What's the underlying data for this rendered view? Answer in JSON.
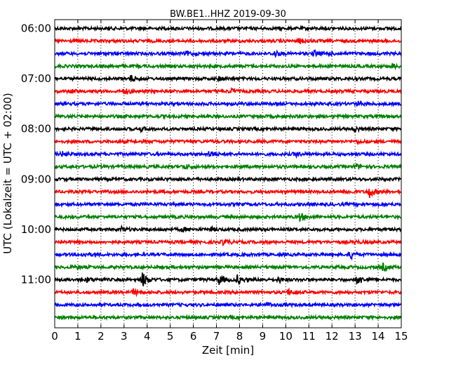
{
  "chart_data": {
    "type": "line",
    "title": "BW.BE1..HHZ 2019-09-30",
    "xlabel": "Zeit  [min]",
    "ylabel": "UTC (Lokalzeit = UTC + 02:00)",
    "xlim": [
      0,
      15
    ],
    "xticks": [
      0,
      1,
      2,
      3,
      4,
      5,
      6,
      7,
      8,
      9,
      10,
      11,
      12,
      13,
      14,
      15
    ],
    "y_tick_labels": [
      "06:00",
      "07:00",
      "08:00",
      "09:00",
      "10:00",
      "11:00"
    ],
    "trace_interval_min": 15,
    "trace_colors": [
      "#000000",
      "#ff0000",
      "#0000ff",
      "#008000"
    ],
    "traces": [
      {
        "start": "06:00",
        "color": "#000000",
        "events": []
      },
      {
        "start": "06:15",
        "color": "#ff0000",
        "events": [
          {
            "t": 10.6,
            "amp": 0.5
          }
        ]
      },
      {
        "start": "06:30",
        "color": "#0000ff",
        "events": [
          {
            "t": 5.7,
            "amp": 0.5
          },
          {
            "t": 9.5,
            "amp": 0.7
          },
          {
            "t": 11.2,
            "amp": 0.7
          },
          {
            "t": 11.8,
            "amp": 0.4
          }
        ]
      },
      {
        "start": "06:45",
        "color": "#008000",
        "events": [
          {
            "t": 14.6,
            "amp": 0.5
          }
        ]
      },
      {
        "start": "07:00",
        "color": "#000000",
        "events": [
          {
            "t": 3.3,
            "amp": 0.8
          },
          {
            "t": 7.1,
            "amp": 0.5
          }
        ]
      },
      {
        "start": "07:15",
        "color": "#ff0000",
        "events": [
          {
            "t": 0.7,
            "amp": 0.3
          },
          {
            "t": 3.0,
            "amp": 0.6
          },
          {
            "t": 7.6,
            "amp": 0.6
          }
        ]
      },
      {
        "start": "07:30",
        "color": "#0000ff",
        "events": [
          {
            "t": 13.1,
            "amp": 0.6
          }
        ]
      },
      {
        "start": "07:45",
        "color": "#008000",
        "events": []
      },
      {
        "start": "08:00",
        "color": "#000000",
        "events": [
          {
            "t": 3.7,
            "amp": 0.4
          },
          {
            "t": 13.0,
            "amp": 0.5
          }
        ]
      },
      {
        "start": "08:15",
        "color": "#ff0000",
        "events": [
          {
            "t": 13.1,
            "amp": 0.3
          }
        ]
      },
      {
        "start": "08:30",
        "color": "#0000ff",
        "events": [
          {
            "t": 0.3,
            "amp": 0.5
          },
          {
            "t": 6.7,
            "amp": 0.9
          },
          {
            "t": 10.4,
            "amp": 0.5
          }
        ]
      },
      {
        "start": "08:45",
        "color": "#008000",
        "events": [
          {
            "t": 5.6,
            "amp": 0.5
          },
          {
            "t": 13.0,
            "amp": 0.5
          }
        ]
      },
      {
        "start": "09:00",
        "color": "#000000",
        "events": []
      },
      {
        "start": "09:15",
        "color": "#ff0000",
        "events": [
          {
            "t": 12.6,
            "amp": 0.5
          },
          {
            "t": 13.6,
            "amp": 1.4
          }
        ]
      },
      {
        "start": "09:30",
        "color": "#0000ff",
        "events": []
      },
      {
        "start": "09:45",
        "color": "#008000",
        "events": [
          {
            "t": 10.6,
            "amp": 0.9
          }
        ]
      },
      {
        "start": "10:00",
        "color": "#000000",
        "events": [
          {
            "t": 2.9,
            "amp": 0.5
          },
          {
            "t": 5.5,
            "amp": 0.4
          },
          {
            "t": 6.8,
            "amp": 0.3
          }
        ]
      },
      {
        "start": "10:15",
        "color": "#ff0000",
        "events": [
          {
            "t": 7.3,
            "amp": 0.8
          },
          {
            "t": 13.0,
            "amp": 0.4
          }
        ]
      },
      {
        "start": "10:30",
        "color": "#0000ff",
        "events": [
          {
            "t": 1.2,
            "amp": 0.4
          },
          {
            "t": 12.8,
            "amp": 0.9
          }
        ]
      },
      {
        "start": "10:45",
        "color": "#008000",
        "events": [
          {
            "t": 0.9,
            "amp": 0.4
          },
          {
            "t": 14.2,
            "amp": 0.8
          }
        ]
      },
      {
        "start": "11:00",
        "color": "#000000",
        "events": [
          {
            "t": 1.4,
            "amp": 0.5
          },
          {
            "t": 3.8,
            "amp": 1.8
          },
          {
            "t": 7.1,
            "amp": 1.2
          },
          {
            "t": 7.9,
            "amp": 1.0
          },
          {
            "t": 9.7,
            "amp": 0.5
          },
          {
            "t": 13.1,
            "amp": 1.2
          }
        ]
      },
      {
        "start": "11:15",
        "color": "#ff0000",
        "events": [
          {
            "t": 3.4,
            "amp": 0.7
          },
          {
            "t": 10.1,
            "amp": 0.6
          }
        ]
      },
      {
        "start": "11:30",
        "color": "#0000ff",
        "events": [
          {
            "t": 9.2,
            "amp": 0.4
          }
        ]
      },
      {
        "start": "11:45",
        "color": "#008000",
        "events": []
      }
    ]
  }
}
